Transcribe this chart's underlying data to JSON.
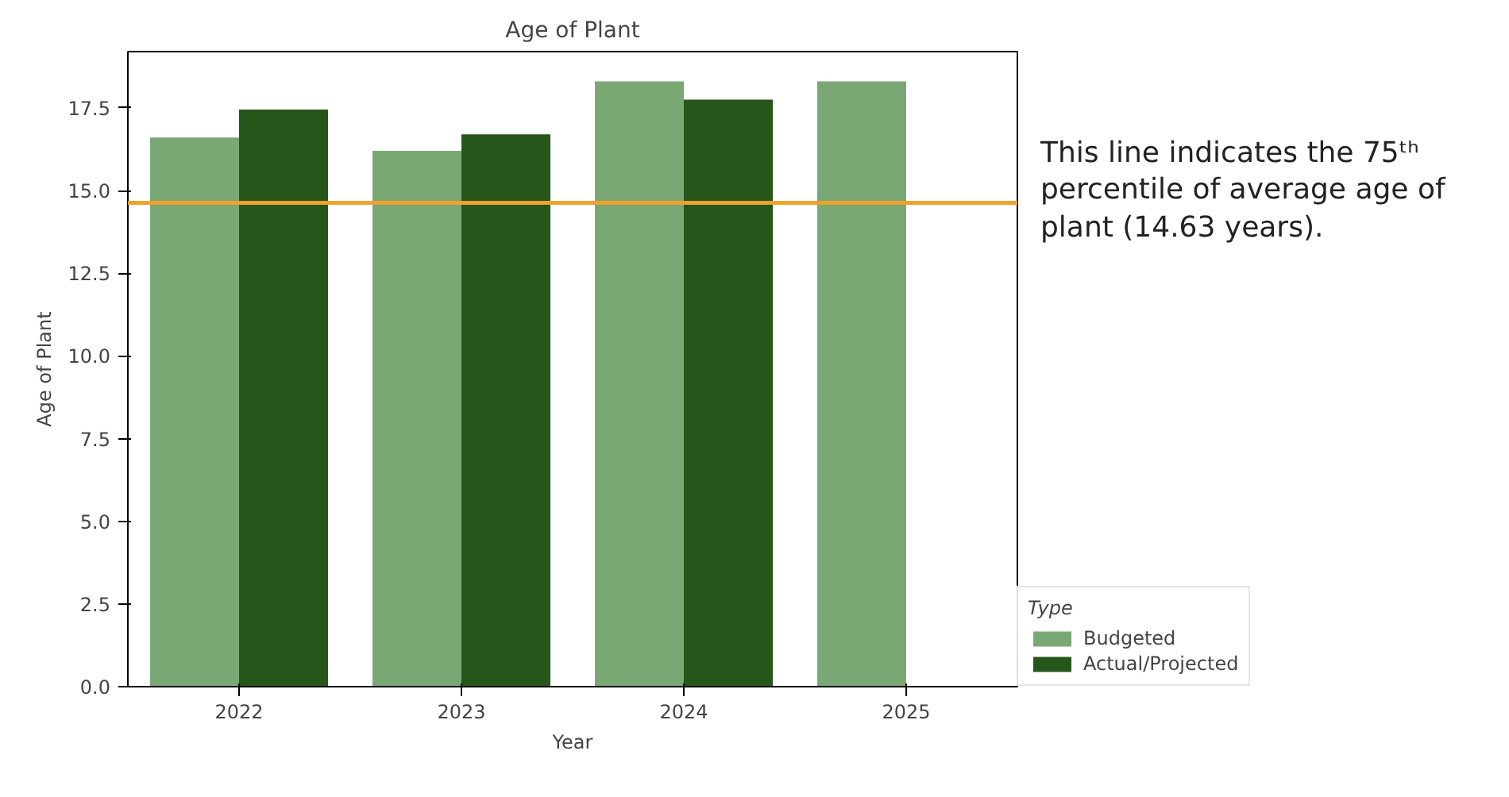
{
  "chart_data": {
    "type": "bar",
    "title": "Age of Plant",
    "xlabel": "Year",
    "ylabel": "Age of Plant",
    "legend_title": "Type",
    "categories": [
      "2022",
      "2023",
      "2024",
      "2025"
    ],
    "series": [
      {
        "name": "Budgeted",
        "color": "#7aa874",
        "values": [
          16.6,
          16.2,
          18.3,
          18.3
        ]
      },
      {
        "name": "Actual/Projected",
        "color": "#26561a",
        "values": [
          17.45,
          16.7,
          17.75,
          null
        ]
      }
    ],
    "ylim": [
      0,
      19.2
    ],
    "yticks": [
      {
        "value": 0,
        "label": "0.0"
      },
      {
        "value": 2.5,
        "label": "2.5"
      },
      {
        "value": 5,
        "label": "5.0"
      },
      {
        "value": 7.5,
        "label": "7.5"
      },
      {
        "value": 10,
        "label": "10.0"
      },
      {
        "value": 12.5,
        "label": "12.5"
      },
      {
        "value": 15,
        "label": "15.0"
      },
      {
        "value": 17.5,
        "label": "17.5"
      }
    ],
    "ref_lines": [
      {
        "axis": "y",
        "value": 14.63,
        "color": "#f0a22e",
        "line_style": "solid"
      }
    ],
    "annotations": [
      "This line indicates the 75ᵗʰ percentile of average age of plant (14.63 years)."
    ],
    "grid": false,
    "legend": "right"
  }
}
